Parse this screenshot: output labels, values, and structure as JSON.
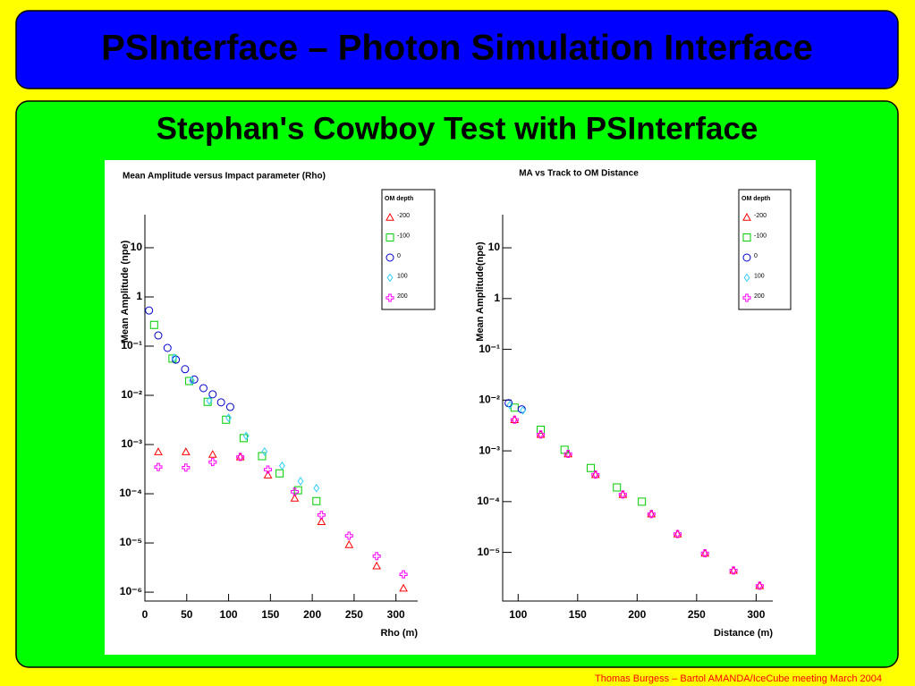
{
  "header": {
    "title": "PSInterface – Photon Simulation Interface"
  },
  "subtitle": "Stephan's Cowboy Test  with PSInterface",
  "footer": "Thomas Burgess – Bartol AMANDA/IceCube meeting March 2004",
  "chart_data": [
    {
      "type": "scatter",
      "title": "Mean Amplitude versus Impact parameter (Rho)",
      "x_label": "Rho (m)",
      "y_label": "Mean Amplitude (npe)",
      "log_y": true,
      "legend_title": "OM depth",
      "legend": "top-right",
      "xlim": [
        0,
        326
      ],
      "xticks": [
        0,
        50,
        100,
        150,
        200,
        250,
        300
      ],
      "ylim": [
        6.6e-07,
        47
      ],
      "yticks": [
        10,
        1,
        {
          "value": 0.1,
          "label": "10⁻¹"
        },
        {
          "value": 0.01,
          "label": "10⁻²"
        },
        {
          "value": 0.001,
          "label": "10⁻³"
        },
        {
          "value": 0.0001,
          "label": "10⁻⁴"
        },
        {
          "value": 1e-05,
          "label": "10⁻⁵"
        },
        {
          "value": 1e-06,
          "label": "10⁻⁶"
        }
      ],
      "series": [
        {
          "name": "-200",
          "color": "#ff0000",
          "marker": "triangle",
          "x": [
            16,
            49,
            81,
            114,
            147,
            179,
            211,
            244,
            277,
            309
          ],
          "values": [
            0.00071,
            0.00071,
            0.00063,
            0.00056,
            0.00024,
            8.1e-05,
            2.7e-05,
            9.2e-06,
            3.4e-06,
            1.2e-06
          ]
        },
        {
          "name": "-100",
          "color": "#00cc00",
          "marker": "square",
          "x": [
            11,
            33,
            53,
            75,
            97,
            118,
            140,
            161,
            183,
            205
          ],
          "values": [
            0.27,
            0.056,
            0.0195,
            0.0074,
            0.0032,
            0.00135,
            0.00058,
            0.00026,
            0.000118,
            7.1e-05
          ]
        },
        {
          "name": "0",
          "color": "#0000cc",
          "marker": "circle",
          "x": [
            5,
            16,
            27,
            37,
            48,
            59,
            70,
            81,
            91,
            102
          ],
          "values": [
            0.53,
            0.165,
            0.092,
            0.053,
            0.034,
            0.021,
            0.014,
            0.0105,
            0.0072,
            0.0058
          ]
        },
        {
          "name": "100",
          "color": "#33ccff",
          "marker": "diamond",
          "x": [
            35,
            56,
            77,
            100,
            121,
            143,
            164,
            186,
            205
          ],
          "values": [
            0.058,
            0.02,
            0.0078,
            0.0035,
            0.0015,
            0.00072,
            0.00037,
            0.00018,
            0.00013
          ]
        },
        {
          "name": "200",
          "color": "#ff00ff",
          "marker": "cross",
          "x": [
            16,
            49,
            81,
            114,
            147,
            179,
            211,
            244,
            277,
            309
          ],
          "values": [
            0.00035,
            0.00034,
            0.00044,
            0.00056,
            0.00031,
            0.00011,
            3.7e-05,
            1.4e-05,
            5.4e-06,
            2.3e-06
          ]
        }
      ]
    },
    {
      "type": "scatter",
      "title": "MA vs Track to OM Distance",
      "x_label": "Distance (m)",
      "y_label": "Mean Amplitude(npe)",
      "log_y": true,
      "legend_title": "OM depth",
      "legend": "top-right",
      "xlim": [
        87,
        314
      ],
      "xticks": [
        100,
        150,
        200,
        250,
        300
      ],
      "ylim": [
        1.1e-06,
        45
      ],
      "yticks": [
        10,
        1,
        {
          "value": 0.1,
          "label": "10⁻¹"
        },
        {
          "value": 0.01,
          "label": "10⁻²"
        },
        {
          "value": 0.001,
          "label": "10⁻³"
        },
        {
          "value": 0.0001,
          "label": "10⁻⁴"
        },
        {
          "value": 1e-05,
          "label": "10⁻⁵"
        }
      ],
      "series": [
        {
          "name": "-200",
          "color": "#ff0000",
          "marker": "triangle",
          "x": [
            97,
            119,
            142,
            165,
            188,
            212,
            234,
            257,
            281,
            303
          ],
          "values": [
            0.0041,
            0.0021,
            0.00087,
            0.00034,
            0.000138,
            5.7e-05,
            2.3e-05,
            9.6e-06,
            4.4e-06,
            2.2e-06
          ]
        },
        {
          "name": "-100",
          "color": "#00cc00",
          "marker": "square",
          "x": [
            97,
            119,
            139,
            161,
            183,
            204
          ],
          "values": [
            0.0071,
            0.0026,
            0.00105,
            0.00046,
            0.00019,
            0.0001
          ]
        },
        {
          "name": "0",
          "color": "#0000cc",
          "marker": "circle",
          "x": [
            92,
            103
          ],
          "values": [
            0.0087,
            0.0066
          ]
        },
        {
          "name": "100",
          "color": "#33ccff",
          "marker": "diamond",
          "x": [
            93,
            104
          ],
          "values": [
            0.008,
            0.0063
          ]
        },
        {
          "name": "200",
          "color": "#ff00ff",
          "marker": "cross",
          "x": [
            97,
            119,
            142,
            165,
            188,
            212,
            234,
            257,
            281,
            303
          ],
          "values": [
            0.0041,
            0.0021,
            0.00087,
            0.00034,
            0.000138,
            5.7e-05,
            2.3e-05,
            9.6e-06,
            4.4e-06,
            2.2e-06
          ]
        }
      ]
    }
  ]
}
